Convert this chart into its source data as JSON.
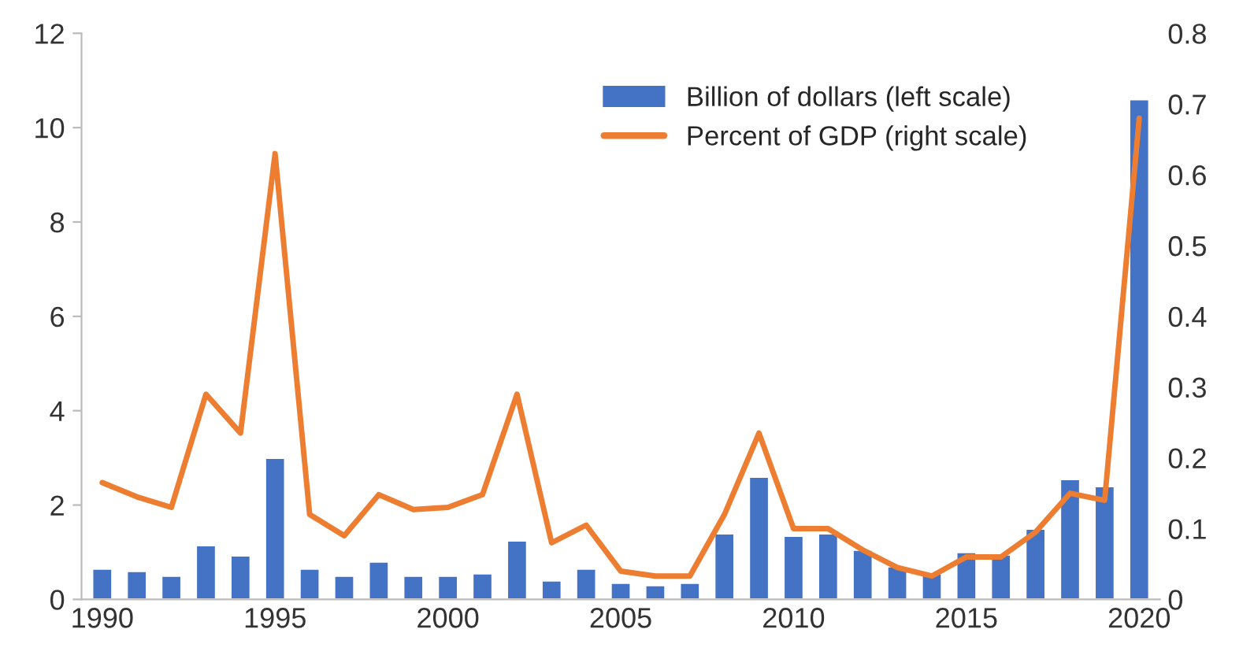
{
  "chart_data": {
    "type": "bar",
    "categories": [
      "1990",
      null,
      null,
      null,
      null,
      "1995",
      null,
      null,
      null,
      null,
      "2000",
      null,
      null,
      null,
      null,
      "2005",
      null,
      null,
      null,
      null,
      "2010",
      null,
      null,
      null,
      null,
      "2015",
      null,
      null,
      null,
      null,
      "2020"
    ],
    "series": [
      {
        "name": "Billion of dollars (left scale)",
        "color": "#4472c4",
        "values": [
          0.65,
          0.6,
          0.5,
          1.15,
          0.93,
          3.0,
          0.65,
          0.5,
          0.8,
          0.5,
          0.5,
          0.55,
          1.25,
          0.4,
          0.65,
          0.35,
          0.3,
          0.35,
          1.4,
          2.6,
          1.35,
          1.4,
          1.05,
          0.7,
          0.55,
          1.0,
          0.95,
          1.5,
          2.55,
          2.4,
          10.6
        ]
      },
      {
        "name": "Percent of GDP (right scale)",
        "type": "line",
        "axis": "y2",
        "color": "#ed7d31",
        "values": [
          0.165,
          0.145,
          0.13,
          0.29,
          0.235,
          0.63,
          0.12,
          0.09,
          0.148,
          0.127,
          0.13,
          0.148,
          0.29,
          0.08,
          0.105,
          0.04,
          0.033,
          0.033,
          0.12,
          0.235,
          0.1,
          0.1,
          0.07,
          0.045,
          0.033,
          0.06,
          0.06,
          0.095,
          0.15,
          0.14,
          0.68
        ]
      }
    ],
    "ylim": [
      0,
      12
    ],
    "yticks": [
      0,
      2,
      4,
      6,
      8,
      10,
      12
    ],
    "y2lim": [
      0,
      0.8
    ],
    "y2ticks": [
      0,
      0.1,
      0.2,
      0.3,
      0.4,
      0.5,
      0.6,
      0.7,
      0.8
    ],
    "legend": "top right"
  }
}
